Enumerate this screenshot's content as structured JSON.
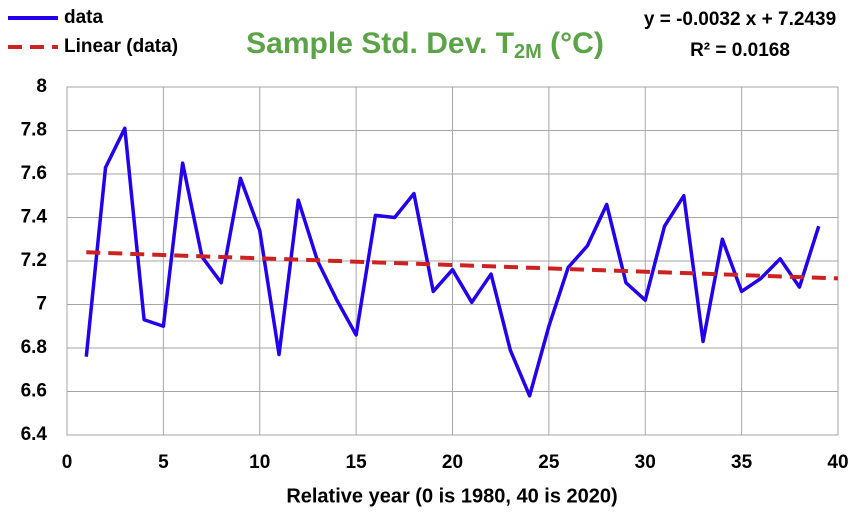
{
  "chart_data": {
    "type": "line",
    "title": {
      "main": "Sample Std. Dev. T",
      "sub": "2M",
      "tail": " (°C)",
      "color": "#5aa346"
    },
    "equation": "y = -0.0032 x + 7.2439",
    "r_squared": "R² = 0.0168",
    "xlabel": "Relative year (0 is 1980, 40 is 2020)",
    "xlim": [
      0,
      40
    ],
    "xticks": [
      0,
      5,
      10,
      15,
      20,
      25,
      30,
      35,
      40
    ],
    "ylim": [
      6.4,
      8
    ],
    "yticks": [
      6.4,
      6.6,
      6.8,
      7,
      7.2,
      7.4,
      7.6,
      7.8,
      8
    ],
    "grid": true,
    "legend": "top-left",
    "series": [
      {
        "name": "data",
        "color": "#2200ee",
        "dashed": false,
        "x": [
          1,
          2,
          3,
          4,
          5,
          6,
          7,
          8,
          9,
          10,
          11,
          12,
          13,
          14,
          15,
          16,
          17,
          18,
          19,
          20,
          21,
          22,
          23,
          24,
          25,
          26,
          27,
          28,
          29,
          30,
          31,
          32,
          33,
          34,
          35,
          36,
          37,
          38,
          39
        ],
        "values": [
          6.76,
          7.63,
          7.81,
          6.93,
          6.9,
          7.65,
          7.22,
          7.1,
          7.58,
          7.34,
          6.77,
          7.48,
          7.2,
          7.02,
          6.86,
          7.41,
          7.4,
          7.51,
          7.06,
          7.16,
          7.01,
          7.14,
          6.79,
          6.58,
          6.9,
          7.17,
          7.27,
          7.46,
          7.1,
          7.02,
          7.36,
          7.5,
          6.83,
          7.3,
          7.06,
          7.12,
          7.21,
          7.08,
          7.36
        ]
      },
      {
        "name": "Linear (data)",
        "color": "#cc2222",
        "dashed": true,
        "x": [
          1,
          40
        ],
        "values": [
          7.24,
          7.12
        ]
      }
    ]
  }
}
